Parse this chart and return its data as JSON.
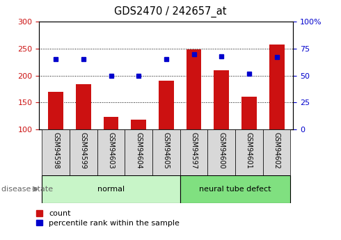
{
  "title": "GDS2470 / 242657_at",
  "samples": [
    "GSM94598",
    "GSM94599",
    "GSM94603",
    "GSM94604",
    "GSM94605",
    "GSM94597",
    "GSM94600",
    "GSM94601",
    "GSM94602"
  ],
  "counts": [
    170,
    184,
    123,
    118,
    191,
    249,
    210,
    161,
    257
  ],
  "percentiles": [
    65,
    65,
    50,
    50,
    65,
    70,
    68,
    52,
    67
  ],
  "groups": [
    {
      "label": "normal",
      "start": 0,
      "end": 5,
      "color": "#c8f5c8"
    },
    {
      "label": "neural tube defect",
      "start": 5,
      "end": 9,
      "color": "#80e080"
    }
  ],
  "bar_color": "#cc1111",
  "dot_color": "#0000cc",
  "left_ylim": [
    100,
    300
  ],
  "right_ylim": [
    0,
    100
  ],
  "left_yticks": [
    100,
    150,
    200,
    250,
    300
  ],
  "right_yticks": [
    0,
    25,
    50,
    75,
    100
  ],
  "right_yticklabels": [
    "0",
    "25",
    "50",
    "75",
    "100%"
  ],
  "left_ylabel_color": "#cc1111",
  "right_ylabel_color": "#0000cc",
  "legend_count_label": "count",
  "legend_pct_label": "percentile rank within the sample",
  "disease_state_label": "disease state",
  "tick_label_area_color": "#d8d8d8",
  "bar_width": 0.55
}
